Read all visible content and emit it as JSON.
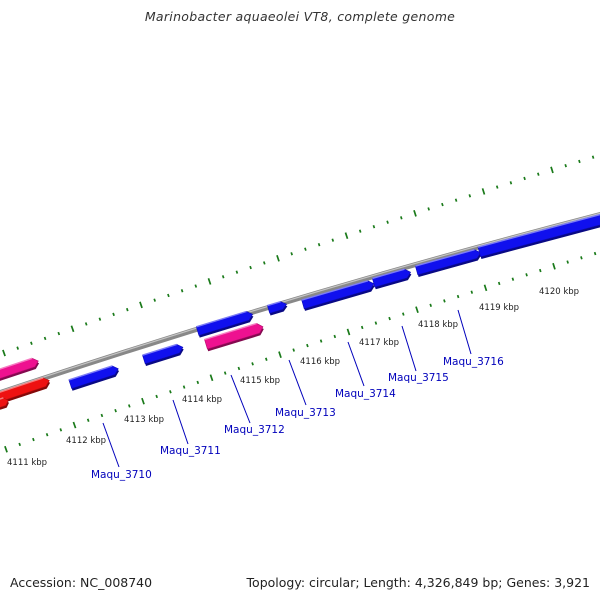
{
  "title": "Marinobacter aquaeolei VT8, complete genome",
  "footer": {
    "accession_label": "Accession:",
    "accession": "NC_008740",
    "topology_label": "Topology:",
    "topology": "circular",
    "length_label": "Length:",
    "length": "4,326,849 bp",
    "genes_label": "Genes:",
    "genes": "3,921"
  },
  "colors": {
    "forward_cds": "#1010ee",
    "reverse_cds": "#ee1190",
    "rna": "#ee1111",
    "backbone": "#888888",
    "tick_marks": "#1a7a1a",
    "gene_label": "#0000bb"
  },
  "kbp_ticks": [
    "4111 kbp",
    "4112 kbp",
    "4113 kbp",
    "4114 kbp",
    "4115 kbp",
    "4116 kbp",
    "4117 kbp",
    "4118 kbp",
    "4119 kbp",
    "4120 kbp"
  ],
  "genes": [
    {
      "name": "Maqu_3710",
      "strand": "forward"
    },
    {
      "name": "Maqu_3711",
      "strand": "forward"
    },
    {
      "name": "Maqu_3712",
      "strand": "reverse"
    },
    {
      "name": "Maqu_3713",
      "strand": "forward"
    },
    {
      "name": "Maqu_3714",
      "strand": "forward"
    },
    {
      "name": "Maqu_3715",
      "strand": "forward"
    },
    {
      "name": "Maqu_3716",
      "strand": "forward"
    }
  ]
}
